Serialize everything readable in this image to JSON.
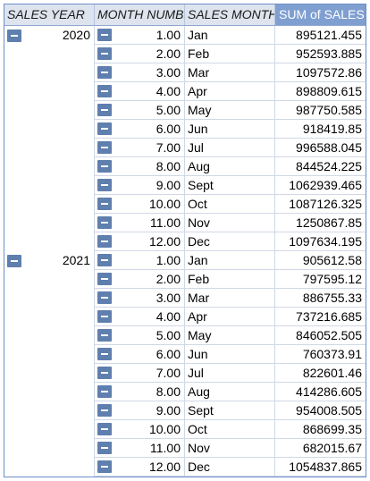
{
  "headers": {
    "sales_year": "SALES YEAR",
    "month_number": "MONTH NUMBER",
    "sales_month": "SALES MONTH",
    "sum_of_sales": "SUM of SALES"
  },
  "groups": [
    {
      "year": "2020",
      "rows": [
        {
          "num": "1.00",
          "month": "Jan",
          "sales": "895121.455"
        },
        {
          "num": "2.00",
          "month": "Feb",
          "sales": "952593.885"
        },
        {
          "num": "3.00",
          "month": "Mar",
          "sales": "1097572.86"
        },
        {
          "num": "4.00",
          "month": "Apr",
          "sales": "898809.615"
        },
        {
          "num": "5.00",
          "month": "May",
          "sales": "987750.585"
        },
        {
          "num": "6.00",
          "month": "Jun",
          "sales": "918419.85"
        },
        {
          "num": "7.00",
          "month": "Jul",
          "sales": "996588.045"
        },
        {
          "num": "8.00",
          "month": "Aug",
          "sales": "844524.225"
        },
        {
          "num": "9.00",
          "month": "Sept",
          "sales": "1062939.465"
        },
        {
          "num": "10.00",
          "month": "Oct",
          "sales": "1087126.325"
        },
        {
          "num": "11.00",
          "month": "Nov",
          "sales": "1250867.85"
        },
        {
          "num": "12.00",
          "month": "Dec",
          "sales": "1097634.195"
        }
      ]
    },
    {
      "year": "2021",
      "rows": [
        {
          "num": "1.00",
          "month": "Jan",
          "sales": "905612.58"
        },
        {
          "num": "2.00",
          "month": "Feb",
          "sales": "797595.12"
        },
        {
          "num": "3.00",
          "month": "Mar",
          "sales": "886755.33"
        },
        {
          "num": "4.00",
          "month": "Apr",
          "sales": "737216.685"
        },
        {
          "num": "5.00",
          "month": "May",
          "sales": "846052.505"
        },
        {
          "num": "6.00",
          "month": "Jun",
          "sales": "760373.91"
        },
        {
          "num": "7.00",
          "month": "Jul",
          "sales": "822601.46"
        },
        {
          "num": "8.00",
          "month": "Aug",
          "sales": "414286.605"
        },
        {
          "num": "9.00",
          "month": "Sept",
          "sales": "954008.505"
        },
        {
          "num": "10.00",
          "month": "Oct",
          "sales": "868699.35"
        },
        {
          "num": "11.00",
          "month": "Nov",
          "sales": "682015.67"
        },
        {
          "num": "12.00",
          "month": "Dec",
          "sales": "1054837.865"
        }
      ]
    }
  ],
  "icons": {
    "collapse": "collapse-minus-icon"
  },
  "colors": {
    "header_bg": "#dde4ee",
    "sum_header_bg": "#7f9fd1",
    "button": "#5f7fae",
    "border": "#6d8fc7"
  }
}
